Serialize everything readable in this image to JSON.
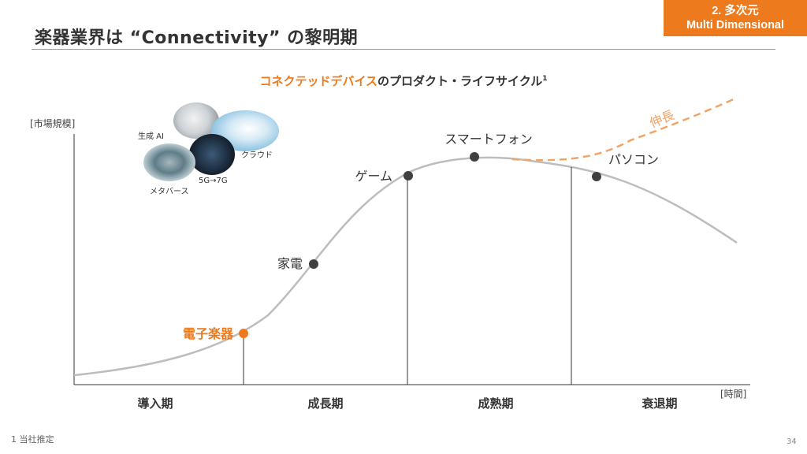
{
  "header": {
    "title": "楽器業界は “Connectivity” の黎明期",
    "section_badge": {
      "line1": "2. 多次元",
      "line2": "Multi Dimensional"
    }
  },
  "subtitle": {
    "highlight": "コネクテッドデバイス",
    "rest": "のプロダクト・ライフサイクル",
    "footnote_ref": "1"
  },
  "axes": {
    "y_label": "[市場規模]",
    "x_label": "[時間]"
  },
  "phases": [
    "導入期",
    "成長期",
    "成熟期",
    "衰退期"
  ],
  "products": [
    {
      "label": "電子楽器",
      "highlight": true
    },
    {
      "label": "家電",
      "highlight": false
    },
    {
      "label": "ゲーム",
      "highlight": false
    },
    {
      "label": "スマートフォン",
      "highlight": false
    },
    {
      "label": "パソコン",
      "highlight": false
    }
  ],
  "growth_label": "伸長",
  "technologies": {
    "gen_ai": "生成 AI",
    "cloud": "クラウド",
    "metaverse": "メタバース",
    "network": "5G→7G"
  },
  "colors": {
    "accent": "#ee7a1e",
    "curve": "#bdbdbd",
    "dashed": "#f0a468",
    "dot": "#404040",
    "axis": "#333333"
  },
  "footnote": "1 当社推定",
  "page_number": "34"
}
